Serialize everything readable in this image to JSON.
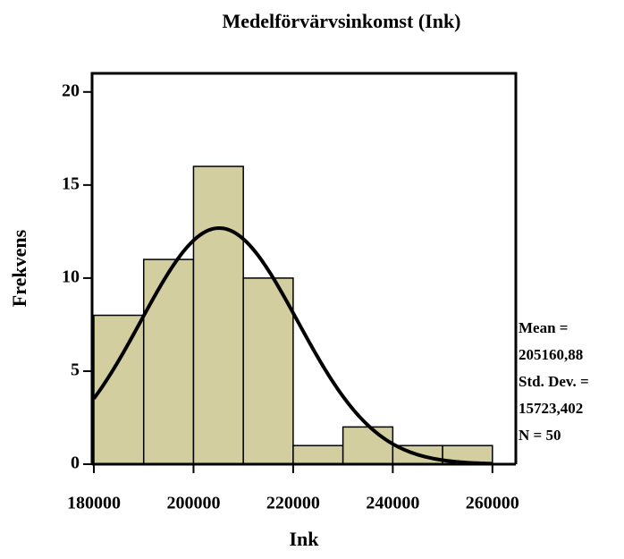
{
  "chart_data": {
    "type": "histogram",
    "title": "Medelförvärvsinkomst (Ink)",
    "x_label": "Ink",
    "y_label": "Frekvens",
    "bins": [
      180000,
      190000,
      200000,
      210000,
      220000,
      230000,
      240000,
      250000,
      260000
    ],
    "values": [
      8,
      11,
      16,
      10,
      1,
      2,
      1,
      1
    ],
    "color": "#d3ce9f",
    "curve_color": "#000000",
    "xlim": [
      180000,
      264700
    ],
    "xticks": [
      180000,
      200000,
      220000,
      240000,
      260000
    ],
    "ylim": [
      0,
      21
    ],
    "yticks": [
      0,
      5,
      10,
      15,
      20
    ],
    "stats": {
      "mean_label": "Mean =",
      "mean": {
        "value": 205160.88,
        "label": "205160,88"
      },
      "std_label": "Std. Dev. =",
      "std": {
        "value": 15723.402,
        "label": "15723,402"
      },
      "n": {
        "value": 50,
        "label": "N = 50"
      }
    }
  }
}
